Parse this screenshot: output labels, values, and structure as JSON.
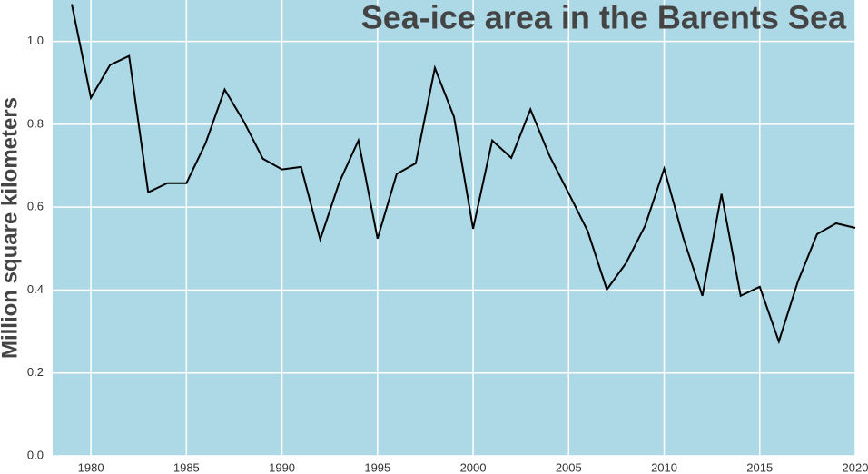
{
  "chart_data": {
    "type": "line",
    "title": "Sea-ice area in the Barents Sea",
    "ylabel": "Million square kilometers",
    "x": [
      1979,
      1980,
      1981,
      1982,
      1983,
      1984,
      1985,
      1986,
      1987,
      1988,
      1989,
      1990,
      1991,
      1992,
      1993,
      1994,
      1995,
      1996,
      1997,
      1998,
      1999,
      2000,
      2001,
      2002,
      2003,
      2004,
      2005,
      2006,
      2007,
      2008,
      2009,
      2010,
      2011,
      2012,
      2013,
      2014,
      2015,
      2016,
      2017,
      2018,
      2019,
      2020
    ],
    "series": [
      {
        "color": "#000000",
        "values": [
          1.09,
          0.864,
          0.943,
          0.965,
          0.636,
          0.658,
          0.658,
          0.754,
          0.884,
          0.807,
          0.717,
          0.691,
          0.697,
          0.522,
          0.66,
          0.761,
          0.524,
          0.68,
          0.706,
          0.936,
          0.818,
          0.548,
          0.761,
          0.719,
          0.836,
          0.724,
          0.634,
          0.542,
          0.401,
          0.465,
          0.555,
          0.693,
          0.526,
          0.386,
          0.632,
          0.386,
          0.408,
          0.276,
          0.421,
          0.535,
          0.561,
          0.55
        ]
      }
    ],
    "xlim": [
      1978,
      2020
    ],
    "ylim": [
      0,
      1.1
    ],
    "xticks": [
      1980,
      1985,
      1990,
      1995,
      2000,
      2005,
      2010,
      2015,
      2020
    ],
    "yticks": [
      {
        "value": 0,
        "label": "0.0"
      },
      0.2,
      0.4,
      0.6,
      0.8,
      {
        "value": 1,
        "label": "1.0"
      }
    ],
    "grid": true,
    "background": "#add8e6"
  }
}
